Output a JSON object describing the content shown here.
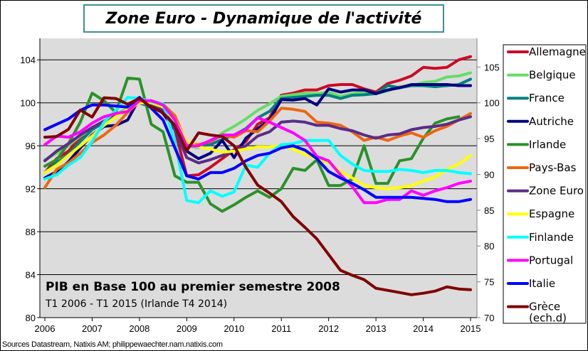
{
  "chart_data": {
    "type": "line",
    "title": "Zone Euro - Dynamique de l'activité",
    "annotation_title": "PIB en Base 100 au premier semestre 2008",
    "annotation_subtitle": "T1 2006 - T1 2015 (Irlande T4 2014)",
    "source": "Sources Datastream, Natixis AM; philippewaechter.nam.natixis.com",
    "x": [
      "2006T1",
      "2006T2",
      "2006T3",
      "2006T4",
      "2007T1",
      "2007T2",
      "2007T3",
      "2007T4",
      "2008T1",
      "2008T2",
      "2008T3",
      "2008T4",
      "2009T1",
      "2009T2",
      "2009T3",
      "2009T4",
      "2010T1",
      "2010T2",
      "2010T3",
      "2010T4",
      "2011T1",
      "2011T2",
      "2011T3",
      "2011T4",
      "2012T1",
      "2012T2",
      "2012T3",
      "2012T4",
      "2013T1",
      "2013T2",
      "2013T3",
      "2013T4",
      "2014T1",
      "2014T2",
      "2014T3",
      "2014T4",
      "2015T1"
    ],
    "x_tick_labels": [
      "2006",
      "2007",
      "2008",
      "2009",
      "2010",
      "2011",
      "2012",
      "2013",
      "2014",
      "2015"
    ],
    "y_left": {
      "ticks": [
        "80",
        "84",
        "88",
        "92",
        "96",
        "100",
        "104"
      ],
      "range": [
        80,
        106
      ]
    },
    "y_right": {
      "ticks": [
        "70",
        "75",
        "80",
        "85",
        "90",
        "95",
        "100",
        "105"
      ],
      "range": [
        70,
        109
      ]
    },
    "grid": "horizontal",
    "legend_position": "right",
    "background": "#dcdcdc",
    "series": [
      {
        "name": "Allemagne",
        "color": "#cc0a25",
        "axis": "left",
        "values": [
          93.5,
          94.8,
          95.5,
          96.8,
          97.5,
          98.2,
          98.8,
          99.5,
          100.3,
          99.8,
          99.3,
          97.5,
          93.2,
          93.3,
          94.0,
          94.8,
          95.6,
          96.4,
          98.0,
          98.6,
          100.7,
          100.9,
          101.2,
          101.2,
          101.6,
          101.7,
          101.7,
          101.3,
          101.0,
          101.8,
          102.1,
          102.5,
          103.3,
          103.2,
          103.3,
          104.0,
          104.3
        ]
      },
      {
        "name": "Belgique",
        "color": "#66dd66",
        "axis": "left",
        "values": [
          94.7,
          95.3,
          96.0,
          96.9,
          97.6,
          98.3,
          98.9,
          99.5,
          100.1,
          100.2,
          99.9,
          98.8,
          96.0,
          95.8,
          96.3,
          97.2,
          97.8,
          98.5,
          99.3,
          99.9,
          100.6,
          100.75,
          100.9,
          100.85,
          101.0,
          100.6,
          100.85,
          101.0,
          100.85,
          101.1,
          101.5,
          101.6,
          101.9,
          102.0,
          102.4,
          102.5,
          102.8
        ]
      },
      {
        "name": "France",
        "color": "#008080",
        "axis": "left",
        "values": [
          93.5,
          94.4,
          95.2,
          96.4,
          97.5,
          98.2,
          98.8,
          99.3,
          100.0,
          99.6,
          99.2,
          97.9,
          96.1,
          96.0,
          96.1,
          96.6,
          97.0,
          97.6,
          98.6,
          99.2,
          100.4,
          100.5,
          100.6,
          100.7,
          100.7,
          100.4,
          100.7,
          100.75,
          100.85,
          101.6,
          101.4,
          101.6,
          101.6,
          101.5,
          101.6,
          101.7,
          102.2
        ]
      },
      {
        "name": "Autriche",
        "color": "#000080",
        "axis": "left",
        "values": [
          93.0,
          93.6,
          94.5,
          95.8,
          97.0,
          97.8,
          97.9,
          98.4,
          100.4,
          99.9,
          99.0,
          97.5,
          95.5,
          94.8,
          95.3,
          96.5,
          94.9,
          96.7,
          97.6,
          98.4,
          100.3,
          100.25,
          100.4,
          99.8,
          101.3,
          101.0,
          101.2,
          101.2,
          100.85,
          101.2,
          101.4,
          101.7,
          101.7,
          101.7,
          101.7,
          101.6,
          101.6
        ]
      },
      {
        "name": "Irlande",
        "color": "#2a922a",
        "axis": "left",
        "values": [
          94.1,
          94.7,
          96.2,
          98.2,
          100.9,
          100.2,
          99.1,
          102.3,
          102.2,
          98.0,
          97.3,
          93.2,
          92.6,
          92.6,
          90.6,
          89.9,
          90.5,
          91.2,
          91.8,
          91.2,
          92.0,
          93.9,
          93.7,
          94.7,
          92.3,
          92.3,
          92.9,
          96.0,
          92.5,
          92.5,
          94.6,
          94.8,
          96.7,
          98.1,
          98.5,
          98.7,
          null
        ]
      },
      {
        "name": "Pays-Bas",
        "color": "#ee6611",
        "axis": "left",
        "values": [
          92.1,
          93.8,
          94.4,
          95.3,
          96.3,
          97.0,
          97.9,
          99.1,
          100.1,
          100.0,
          99.8,
          98.8,
          96.2,
          96.1,
          96.4,
          97.0,
          96.8,
          97.4,
          97.3,
          98.3,
          99.5,
          99.4,
          99.2,
          98.2,
          98.1,
          97.9,
          97.3,
          96.5,
          96.8,
          96.5,
          96.9,
          97.2,
          96.8,
          97.4,
          97.8,
          98.4,
          99.0
        ]
      },
      {
        "name": "Zone Euro",
        "color": "#5b2c87",
        "axis": "left",
        "values": [
          94.6,
          95.5,
          96.2,
          97.0,
          97.7,
          98.3,
          98.8,
          99.3,
          100.1,
          99.9,
          99.4,
          97.5,
          94.9,
          94.4,
          94.7,
          95.1,
          95.6,
          96.0,
          96.9,
          97.3,
          98.2,
          98.3,
          98.2,
          97.9,
          97.9,
          97.6,
          97.4,
          97.0,
          96.7,
          97.0,
          97.1,
          97.5,
          97.7,
          97.8,
          98.0,
          98.4,
          98.7
        ]
      },
      {
        "name": "Espagne",
        "color": "#ffff00",
        "axis": "left",
        "values": [
          93.5,
          94.2,
          95.1,
          96.0,
          96.9,
          97.9,
          98.7,
          99.4,
          100.0,
          100.0,
          99.6,
          98.4,
          96.4,
          95.9,
          95.7,
          95.4,
          95.5,
          95.7,
          95.9,
          95.9,
          96.0,
          95.7,
          95.2,
          94.8,
          94.4,
          93.6,
          93.0,
          92.3,
          92.1,
          92.0,
          92.1,
          92.3,
          92.7,
          93.1,
          93.8,
          94.3,
          95.1
        ]
      },
      {
        "name": "Finlande",
        "color": "#00ffff",
        "axis": "left",
        "values": [
          92.9,
          93.3,
          94.2,
          94.9,
          96.4,
          98.2,
          99.3,
          100.5,
          100.4,
          100.1,
          99.9,
          96.4,
          90.9,
          90.7,
          91.8,
          91.3,
          91.7,
          94.2,
          94.0,
          95.3,
          96.1,
          96.2,
          96.5,
          96.5,
          96.5,
          95.1,
          94.3,
          93.7,
          93.6,
          93.6,
          93.8,
          93.7,
          93.5,
          93.7,
          93.7,
          93.5,
          93.4
        ]
      },
      {
        "name": "Portugal",
        "color": "#ff00ff",
        "axis": "left",
        "values": [
          96.1,
          96.9,
          96.8,
          97.3,
          98.1,
          98.7,
          99.0,
          99.2,
          100.2,
          100.2,
          99.8,
          98.4,
          96.0,
          96.0,
          96.5,
          97.0,
          97.0,
          97.5,
          98.6,
          98.2,
          97.7,
          97.2,
          96.5,
          95.0,
          94.6,
          93.3,
          92.2,
          90.7,
          90.7,
          91.0,
          91.0,
          91.8,
          91.4,
          91.8,
          92.1,
          92.5,
          92.7
        ]
      },
      {
        "name": "Italie",
        "color": "#0000ff",
        "axis": "left",
        "values": [
          97.5,
          98.0,
          98.5,
          99.3,
          99.8,
          99.8,
          99.7,
          99.6,
          100.5,
          99.5,
          98.4,
          95.8,
          93.2,
          92.9,
          93.5,
          93.5,
          93.9,
          94.6,
          95.1,
          95.3,
          95.8,
          96.0,
          95.6,
          94.8,
          93.6,
          93.0,
          92.5,
          91.9,
          91.2,
          91.2,
          91.2,
          91.2,
          91.1,
          91.0,
          90.8,
          90.8,
          91.0
        ]
      },
      {
        "name": "Grèce (ech.d)",
        "color": "#800000",
        "axis": "right",
        "values": [
          95.2,
          95.3,
          96.3,
          99.0,
          98.0,
          100.7,
          100.6,
          99.8,
          100.6,
          99.4,
          98.6,
          96.8,
          93.3,
          95.8,
          95.5,
          95.3,
          94.0,
          91.0,
          88.5,
          87.4,
          86.2,
          84.1,
          82.6,
          81.0,
          78.8,
          76.6,
          75.9,
          75.3,
          74.1,
          73.8,
          73.5,
          73.2,
          73.4,
          73.7,
          74.3,
          74.0,
          73.9
        ]
      }
    ],
    "legend": [
      "Allemagne",
      "Belgique",
      "France",
      "Autriche",
      "Irlande",
      "Pays-Bas",
      "Zone Euro",
      "Espagne",
      "Finlande",
      "Portugal",
      "Italie",
      "Grèce"
    ],
    "legend_last_line2": "(ech.d)"
  }
}
